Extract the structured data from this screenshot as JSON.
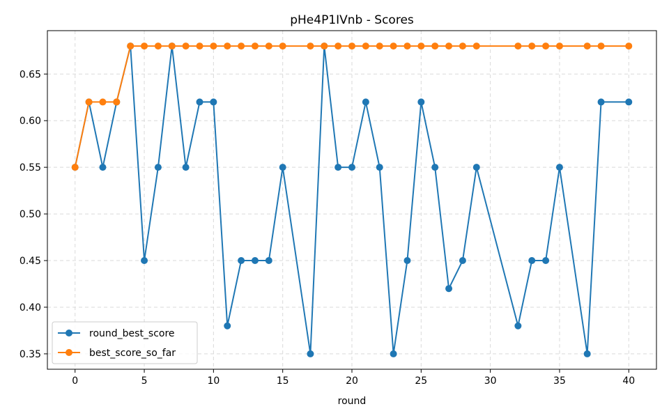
{
  "chart_data": {
    "type": "line",
    "title": "pHe4P1IVnb - Scores",
    "xlabel": "round",
    "ylabel": "",
    "xlim": [
      -2,
      42
    ],
    "ylim": [
      0.3335,
      0.6965
    ],
    "xticks": [
      0,
      5,
      10,
      15,
      20,
      25,
      30,
      35,
      40
    ],
    "yticks": [
      0.35,
      0.4,
      0.45,
      0.5,
      0.55,
      0.6,
      0.65
    ],
    "grid": true,
    "legend_position": "lower-left",
    "series": [
      {
        "name": "round_best_score",
        "color": "#1f77b4",
        "x": [
          0,
          1,
          2,
          3,
          4,
          5,
          6,
          7,
          8,
          9,
          10,
          11,
          12,
          13,
          14,
          15,
          17,
          18,
          19,
          20,
          21,
          22,
          23,
          24,
          25,
          26,
          27,
          28,
          29,
          32,
          33,
          34,
          35,
          37,
          38,
          40
        ],
        "values": [
          0.55,
          0.62,
          0.55,
          0.62,
          0.68,
          0.45,
          0.55,
          0.68,
          0.55,
          0.62,
          0.62,
          0.38,
          0.45,
          0.45,
          0.45,
          0.55,
          0.35,
          0.68,
          0.55,
          0.55,
          0.62,
          0.55,
          0.35,
          0.45,
          0.62,
          0.55,
          0.42,
          0.45,
          0.55,
          0.38,
          0.45,
          0.45,
          0.55,
          0.35,
          0.62,
          0.62
        ]
      },
      {
        "name": "best_score_so_far",
        "color": "#ff7f0e",
        "x": [
          0,
          1,
          2,
          3,
          4,
          5,
          6,
          7,
          8,
          9,
          10,
          11,
          12,
          13,
          14,
          15,
          17,
          18,
          19,
          20,
          21,
          22,
          23,
          24,
          25,
          26,
          27,
          28,
          29,
          32,
          33,
          34,
          35,
          37,
          38,
          40
        ],
        "values": [
          0.55,
          0.62,
          0.62,
          0.62,
          0.68,
          0.68,
          0.68,
          0.68,
          0.68,
          0.68,
          0.68,
          0.68,
          0.68,
          0.68,
          0.68,
          0.68,
          0.68,
          0.68,
          0.68,
          0.68,
          0.68,
          0.68,
          0.68,
          0.68,
          0.68,
          0.68,
          0.68,
          0.68,
          0.68,
          0.68,
          0.68,
          0.68,
          0.68,
          0.68,
          0.68,
          0.68
        ]
      }
    ]
  }
}
